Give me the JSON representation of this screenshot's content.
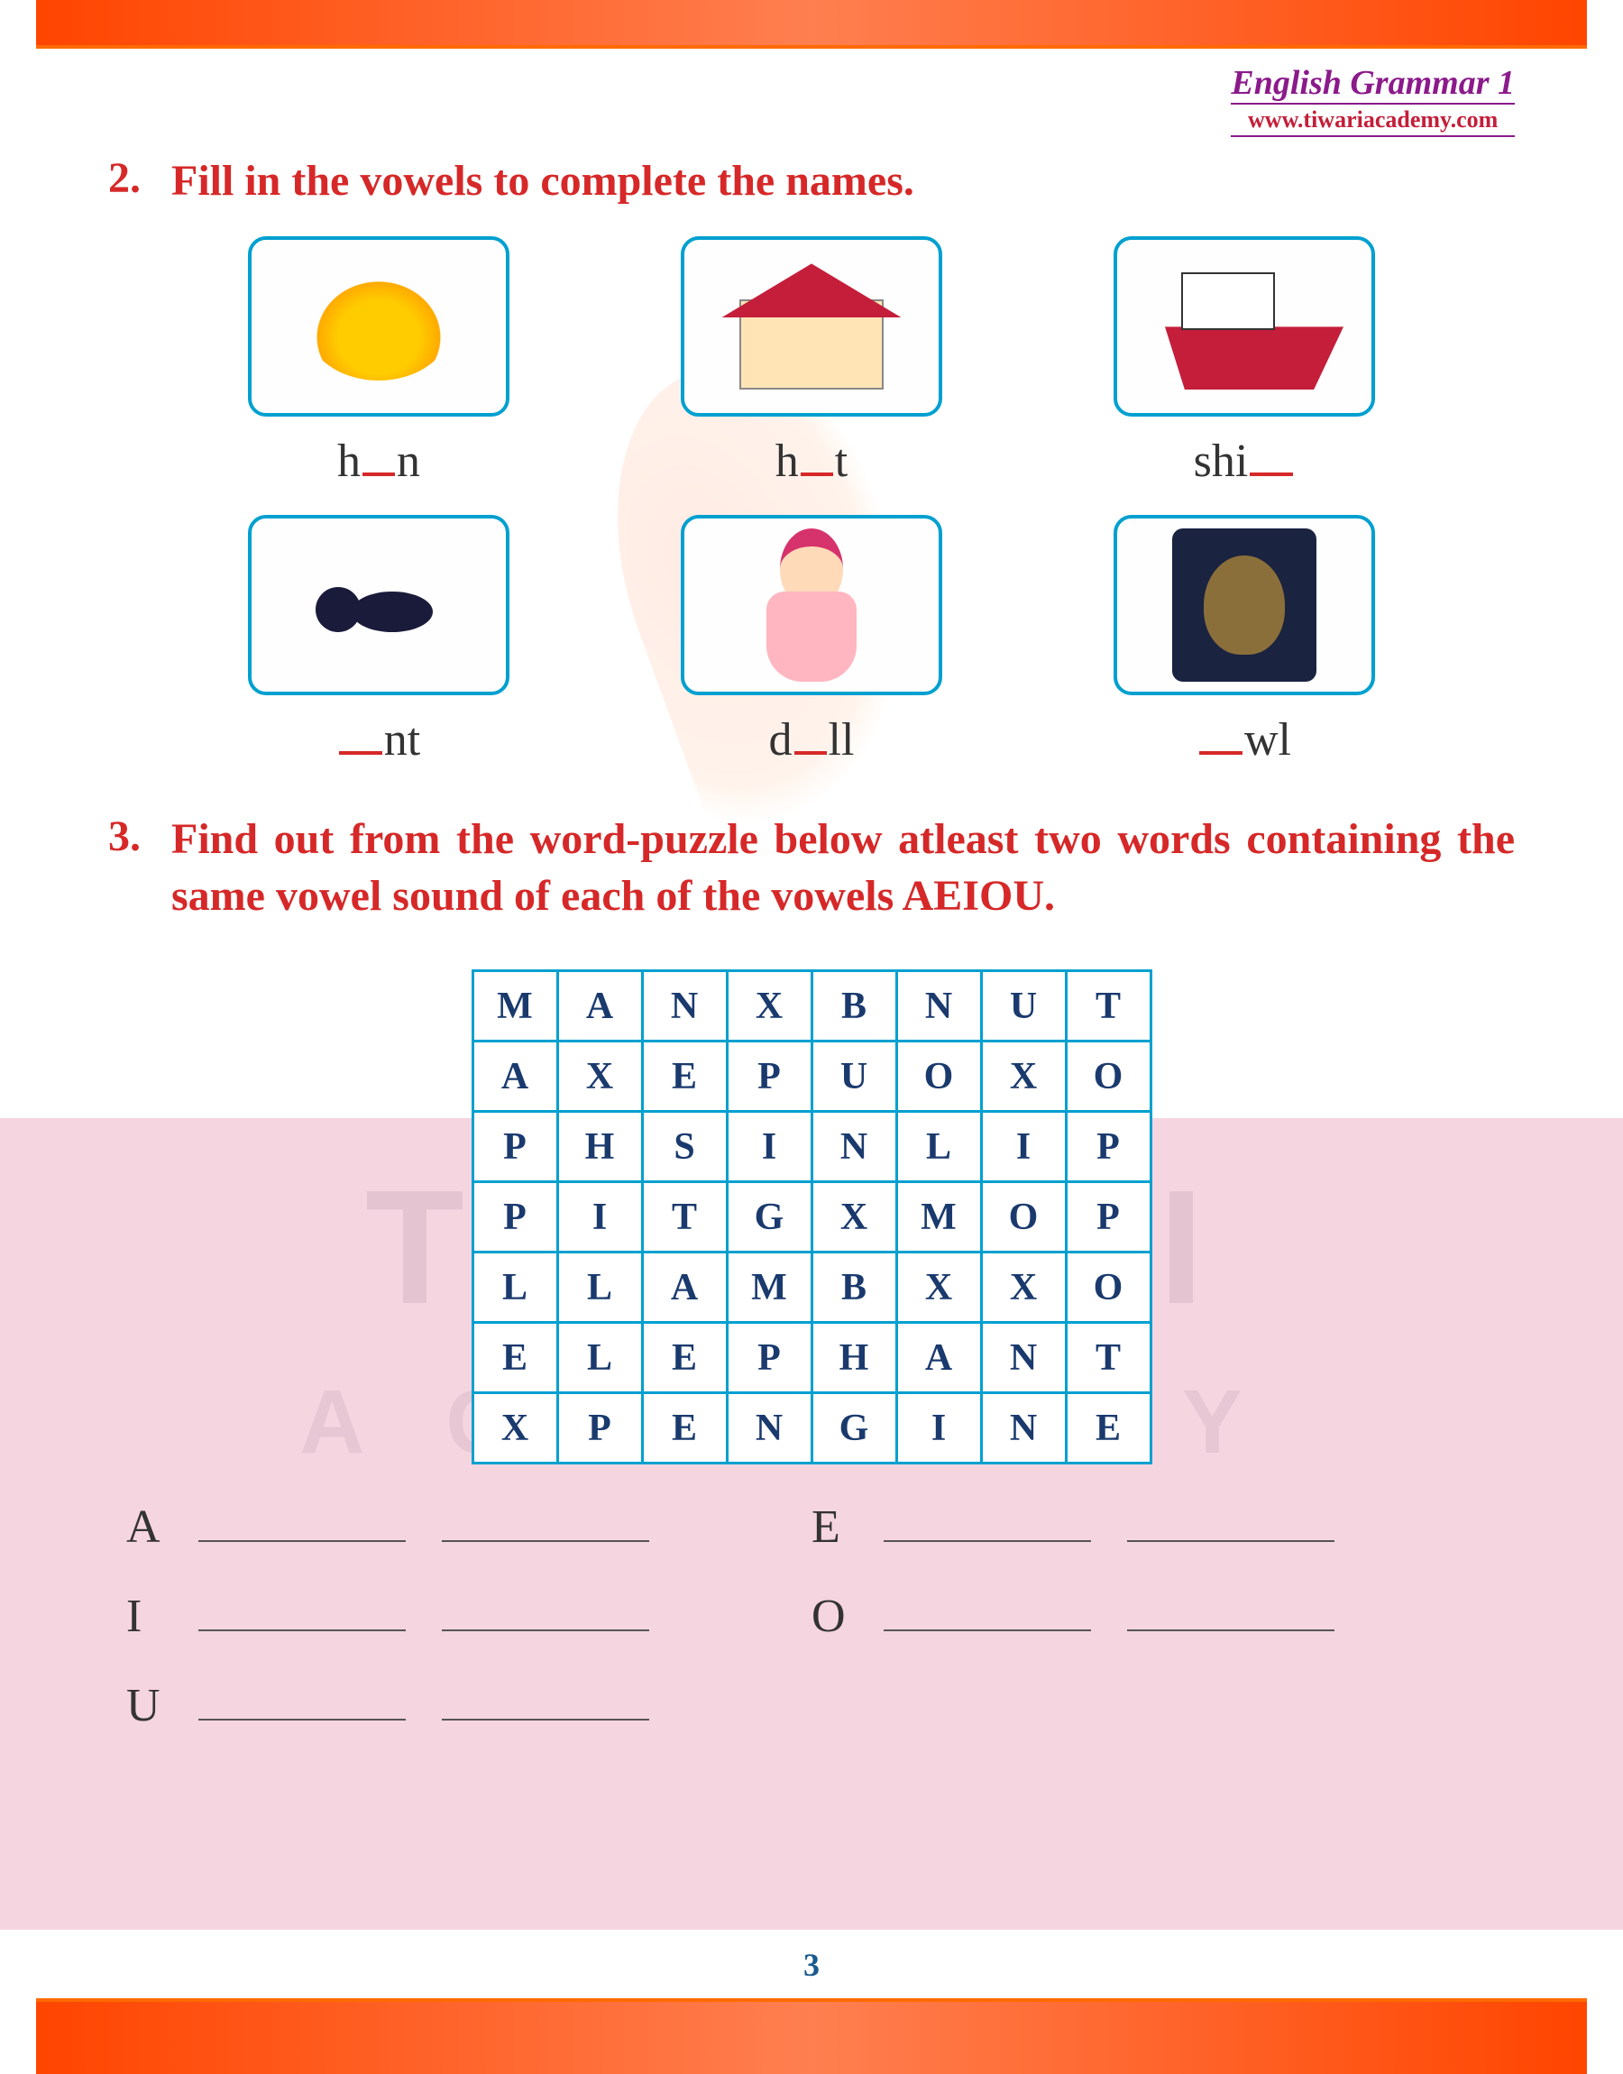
{
  "header": {
    "title": "English Grammar 1",
    "url": "www.tiwariacademy.com"
  },
  "q2": {
    "number": "2.",
    "text": "Fill in the vowels to complete the names.",
    "items": [
      {
        "name": "hen",
        "label_pre": "h",
        "label_post": "n",
        "blank": "mid"
      },
      {
        "name": "hut",
        "label_pre": "h",
        "label_post": "t",
        "blank": "mid"
      },
      {
        "name": "ship",
        "label_pre": "shi",
        "label_post": "",
        "blank": "end"
      },
      {
        "name": "ant",
        "label_pre": "",
        "label_post": "nt",
        "blank": "start"
      },
      {
        "name": "doll",
        "label_pre": "d",
        "label_post": "ll",
        "blank": "mid"
      },
      {
        "name": "owl",
        "label_pre": "",
        "label_post": "wl",
        "blank": "start"
      }
    ]
  },
  "q3": {
    "number": "3.",
    "text": "Find out from the word-puzzle below atleast two words containing the same vowel sound of each of the vowels AEIOU.",
    "grid": [
      [
        "M",
        "A",
        "N",
        "X",
        "B",
        "N",
        "U",
        "T"
      ],
      [
        "A",
        "X",
        "E",
        "P",
        "U",
        "O",
        "X",
        "O"
      ],
      [
        "P",
        "H",
        "S",
        "I",
        "N",
        "L",
        "I",
        "P"
      ],
      [
        "P",
        "I",
        "T",
        "G",
        "X",
        "M",
        "O",
        "P"
      ],
      [
        "L",
        "L",
        "A",
        "M",
        "B",
        "X",
        "X",
        "O"
      ],
      [
        "E",
        "L",
        "E",
        "P",
        "H",
        "A",
        "N",
        "T"
      ],
      [
        "X",
        "P",
        "E",
        "N",
        "G",
        "I",
        "N",
        "E"
      ]
    ],
    "answer_labels": [
      "A",
      "E",
      "I",
      "O",
      "U"
    ]
  },
  "watermark": {
    "line1": "TIWARI",
    "line2": "ACADEMY"
  },
  "page_number": "3",
  "colors": {
    "heading": "#d62828",
    "border_frame": "#ff5a00",
    "img_border": "#00a0d0",
    "grid_border": "#00a0d0",
    "grid_text": "#1a3a6e",
    "header_title": "#8b1a8b",
    "header_url": "#c41e3a",
    "puzzle_bg": "#f5d5e0",
    "blank_underline": "#d62828",
    "page_num": "#1a5a8e"
  },
  "fonts": {
    "heading_size_pt": 36,
    "label_size_pt": 39,
    "grid_size_pt": 32,
    "header_title_pt": 28,
    "header_url_pt": 20
  }
}
